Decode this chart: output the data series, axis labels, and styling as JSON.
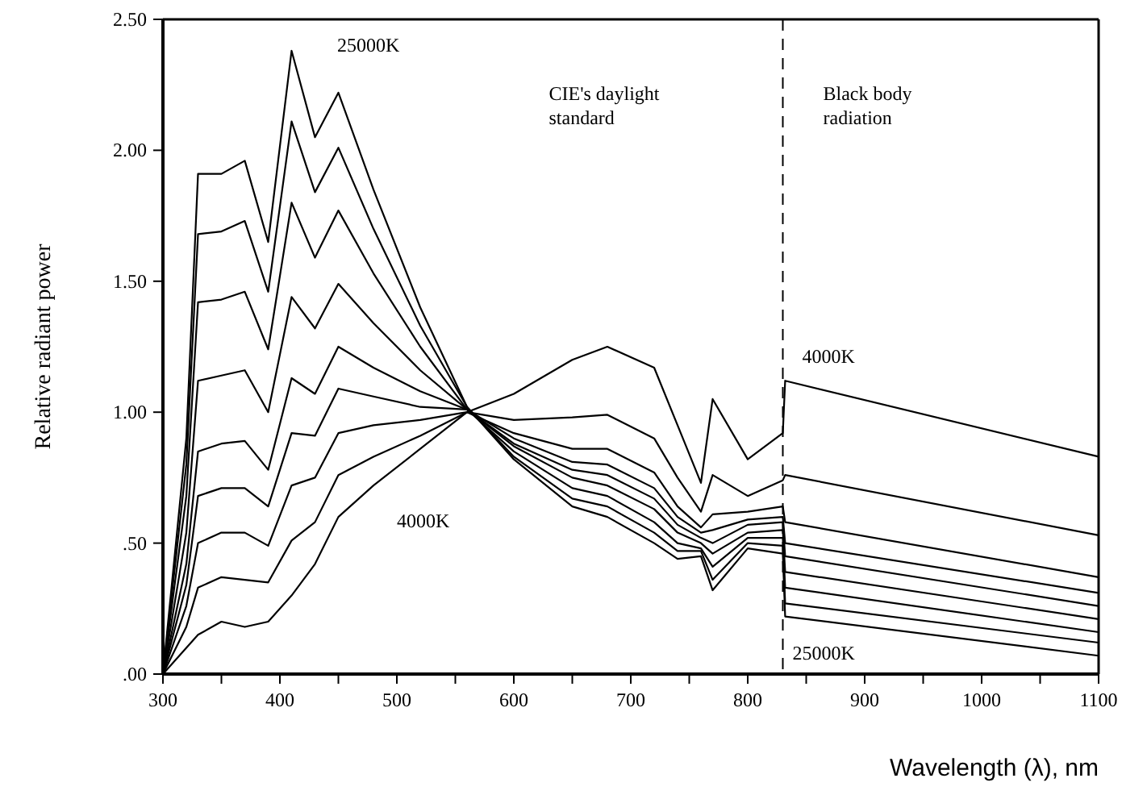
{
  "chart_data": {
    "type": "line",
    "xlabel": "Wavelength (λ), nm",
    "ylabel": "Relative radiant power",
    "x": [
      300,
      320,
      330,
      350,
      370,
      390,
      410,
      430,
      450,
      480,
      520,
      560,
      600,
      650,
      680,
      720,
      740,
      760,
      770,
      800,
      830,
      832,
      1100
    ],
    "xlim": [
      300,
      1100
    ],
    "ylim": [
      0,
      2.5
    ],
    "xticks": [
      300,
      {
        "value": 350,
        "label": null
      },
      400,
      {
        "value": 450,
        "label": null
      },
      500,
      {
        "value": 550,
        "label": null
      },
      600,
      {
        "value": 650,
        "label": null
      },
      700,
      {
        "value": 750,
        "label": null
      },
      800,
      {
        "value": 850,
        "label": null
      },
      900,
      {
        "value": 950,
        "label": null
      },
      1000,
      {
        "value": 1050,
        "label": null
      },
      1100
    ],
    "yticks": [
      {
        "value": 0,
        "label": ".00"
      },
      {
        "value": 0.5,
        "label": ".50"
      },
      {
        "value": 1,
        "label": "1.00"
      },
      {
        "value": 1.5,
        "label": "1.50"
      },
      {
        "value": 2,
        "label": "2.00"
      },
      {
        "value": 2.5,
        "label": "2.50"
      }
    ],
    "grid": false,
    "marker": "none",
    "line_style": "solid",
    "series": [
      {
        "color": "#000000",
        "values": [
          0,
          0.1,
          0.15,
          0.2,
          0.18,
          0.2,
          0.3,
          0.42,
          0.6,
          0.72,
          0.86,
          1.0,
          1.07,
          1.2,
          1.25,
          1.17,
          0.95,
          0.73,
          1.05,
          0.82,
          0.92,
          1.12,
          0.83
        ]
      },
      {
        "color": "#000000",
        "values": [
          0,
          0.18,
          0.33,
          0.37,
          0.36,
          0.35,
          0.51,
          0.58,
          0.76,
          0.83,
          0.91,
          1.0,
          0.97,
          0.98,
          0.99,
          0.9,
          0.75,
          0.62,
          0.76,
          0.68,
          0.74,
          0.76,
          0.53
        ]
      },
      {
        "color": "#000000",
        "values": [
          0,
          0.26,
          0.5,
          0.54,
          0.54,
          0.49,
          0.72,
          0.75,
          0.92,
          0.95,
          0.97,
          1.0,
          0.92,
          0.86,
          0.86,
          0.77,
          0.64,
          0.56,
          0.61,
          0.62,
          0.64,
          0.58,
          0.37
        ]
      },
      {
        "color": "#000000",
        "values": [
          0,
          0.34,
          0.68,
          0.71,
          0.71,
          0.64,
          0.92,
          0.91,
          1.09,
          1.06,
          1.02,
          1.01,
          0.9,
          0.81,
          0.8,
          0.71,
          0.6,
          0.54,
          0.55,
          0.59,
          0.6,
          0.5,
          0.31
        ]
      },
      {
        "color": "#000000",
        "values": [
          0,
          0.42,
          0.85,
          0.88,
          0.89,
          0.78,
          1.13,
          1.07,
          1.25,
          1.17,
          1.08,
          1.01,
          0.88,
          0.78,
          0.76,
          0.67,
          0.57,
          0.52,
          0.5,
          0.57,
          0.58,
          0.45,
          0.26
        ]
      },
      {
        "color": "#000000",
        "values": [
          0,
          0.54,
          1.12,
          1.14,
          1.16,
          1.0,
          1.44,
          1.32,
          1.49,
          1.34,
          1.16,
          1.01,
          0.87,
          0.75,
          0.72,
          0.63,
          0.54,
          0.5,
          0.46,
          0.54,
          0.55,
          0.39,
          0.21
        ]
      },
      {
        "color": "#000000",
        "values": [
          0,
          0.68,
          1.42,
          1.43,
          1.46,
          1.24,
          1.8,
          1.59,
          1.77,
          1.53,
          1.25,
          1.01,
          0.85,
          0.71,
          0.68,
          0.58,
          0.5,
          0.48,
          0.41,
          0.52,
          0.52,
          0.33,
          0.16
        ]
      },
      {
        "color": "#000000",
        "values": [
          0,
          0.8,
          1.68,
          1.69,
          1.73,
          1.46,
          2.11,
          1.84,
          2.01,
          1.7,
          1.33,
          1.02,
          0.83,
          0.67,
          0.64,
          0.54,
          0.47,
          0.47,
          0.36,
          0.5,
          0.49,
          0.27,
          0.12
        ]
      },
      {
        "color": "#000000",
        "values": [
          0,
          0.9,
          1.91,
          1.91,
          1.96,
          1.65,
          2.38,
          2.05,
          2.22,
          1.85,
          1.4,
          1.02,
          0.82,
          0.64,
          0.6,
          0.5,
          0.44,
          0.45,
          0.32,
          0.48,
          0.46,
          0.22,
          0.07
        ]
      }
    ],
    "ref_lines": [
      {
        "axis": "x",
        "value": 830,
        "line_style": "dashed",
        "color": "#000000"
      }
    ],
    "annotations": [
      "25000K",
      "4000K",
      "CIE's daylight standard",
      "Black body radiation",
      "4000K",
      "25000K"
    ]
  }
}
